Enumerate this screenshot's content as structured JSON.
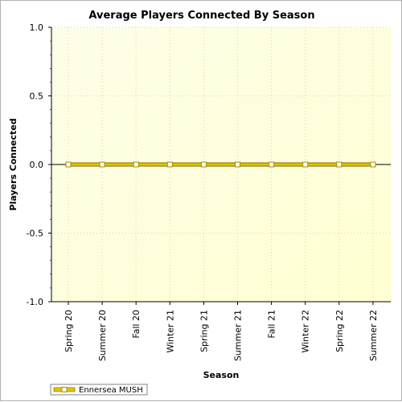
{
  "chart_data": {
    "type": "line",
    "title": "Average Players Connected By Season",
    "xlabel": "Season",
    "ylabel": "Players Connected",
    "categories": [
      "Spring 20",
      "Summer 20",
      "Fall 20",
      "Winter 21",
      "Spring 21",
      "Summer 21",
      "Fall 21",
      "Winter 22",
      "Spring 22",
      "Summer 22"
    ],
    "series": [
      {
        "name": "Ennersea MUSH",
        "values": [
          0,
          0,
          0,
          0,
          0,
          0,
          0,
          0,
          0,
          0
        ]
      }
    ],
    "ylim": [
      -1.0,
      1.0
    ],
    "yticks": [
      "1.0",
      "0.5",
      "0.0",
      "-0.5",
      "-1.0"
    ],
    "grid": true,
    "legend_position": "bottom-left",
    "colors": {
      "plot_background_start": "#fefde8",
      "plot_background_end": "#ffffd2",
      "series_line": "#e6c400",
      "series_line_dark": "#7a6a00",
      "marker_fill": "#ffffff",
      "marker_stroke": "#a09000",
      "grid": "#d8d8a0",
      "zero_line": "#000000"
    }
  }
}
